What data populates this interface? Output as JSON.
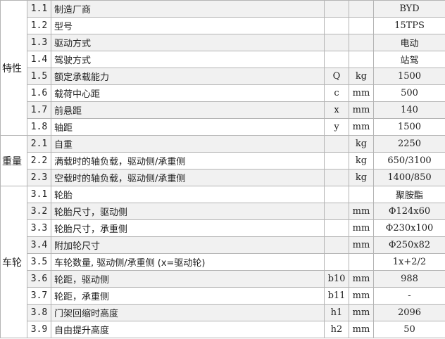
{
  "sections": [
    {
      "category": "特性",
      "rows": [
        {
          "no": "1.1",
          "name": "制造厂商",
          "symbol": "",
          "unit": "",
          "value": "BYD"
        },
        {
          "no": "1.2",
          "name": "型号",
          "symbol": "",
          "unit": "",
          "value": "15TPS"
        },
        {
          "no": "1.3",
          "name": "驱动方式",
          "symbol": "",
          "unit": "",
          "value": "电动"
        },
        {
          "no": "1.4",
          "name": "驾驶方式",
          "symbol": "",
          "unit": "",
          "value": "站驾"
        },
        {
          "no": "1.5",
          "name": "额定承载能力",
          "symbol": "Q",
          "unit": "kg",
          "value": "1500"
        },
        {
          "no": "1.6",
          "name": "载荷中心距",
          "symbol": "c",
          "unit": "mm",
          "value": "500"
        },
        {
          "no": "1.7",
          "name": "前悬距",
          "symbol": "x",
          "unit": "mm",
          "value": "140"
        },
        {
          "no": "1.8",
          "name": "轴距",
          "symbol": "y",
          "unit": "mm",
          "value": "1500"
        }
      ]
    },
    {
      "category": "重量",
      "rows": [
        {
          "no": "2.1",
          "name": "自重",
          "symbol": "",
          "unit": "kg",
          "value": "2250"
        },
        {
          "no": "2.2",
          "name": "满载时的轴负载，驱动侧/承重侧",
          "symbol": "",
          "unit": "kg",
          "value": "650/3100"
        },
        {
          "no": "2.3",
          "name": "空载时的轴负载，驱动侧/承重侧",
          "symbol": "",
          "unit": "kg",
          "value": "1400/850"
        }
      ]
    },
    {
      "category": "车轮",
      "rows": [
        {
          "no": "3.1",
          "name": "轮胎",
          "symbol": "",
          "unit": "",
          "value": "聚胺酯"
        },
        {
          "no": "3.2",
          "name": "轮胎尺寸，驱动侧",
          "symbol": "",
          "unit": "mm",
          "value": "Φ124x60"
        },
        {
          "no": "3.3",
          "name": "轮胎尺寸，承重侧",
          "symbol": "",
          "unit": "mm",
          "value": "Φ230x100"
        },
        {
          "no": "3.4",
          "name": "附加轮尺寸",
          "symbol": "",
          "unit": "mm",
          "value": "Φ250x82"
        },
        {
          "no": "3.5",
          "name": "车轮数量, 驱动侧/承重侧 (x=驱动轮)",
          "symbol": "",
          "unit": "",
          "value": "1x+2/2"
        },
        {
          "no": "3.6",
          "name": "轮距，驱动侧",
          "symbol": "b10",
          "unit": "mm",
          "value": "988"
        },
        {
          "no": "3.7",
          "name": "轮距，承重侧",
          "symbol": "b11",
          "unit": "mm",
          "value": "-"
        },
        {
          "no": "3.8",
          "name": "门架回缩时高度",
          "symbol": "h1",
          "unit": "mm",
          "value": "2096"
        },
        {
          "no": "3.9",
          "name": "自由提升高度",
          "symbol": "h2",
          "unit": "mm",
          "value": "50"
        }
      ]
    }
  ]
}
